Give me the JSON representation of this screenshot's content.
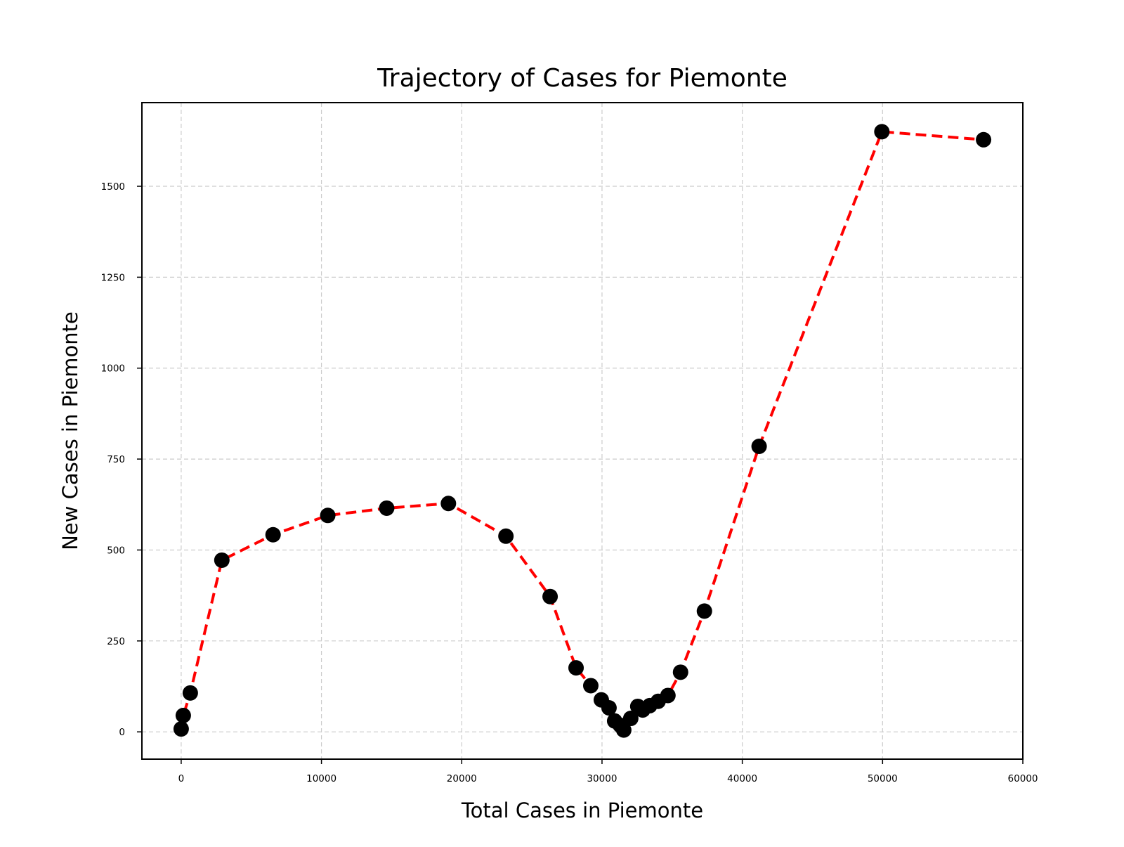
{
  "chart_data": {
    "type": "line",
    "title": "Trajectory of Cases for Piemonte",
    "xlabel": "Total Cases in Piemonte",
    "ylabel": "New Cases in Piemonte",
    "xlim": [
      -2800,
      60000
    ],
    "ylim": [
      -75,
      1730
    ],
    "x_ticks": [
      0,
      10000,
      20000,
      30000,
      40000,
      50000,
      60000
    ],
    "y_ticks": [
      0,
      250,
      500,
      750,
      1000,
      1250,
      1500
    ],
    "grid": true,
    "colors": {
      "line": "#ff0000",
      "marker": "#000000",
      "grid": "#cccccc"
    },
    "series": [
      {
        "line_style": "dashed",
        "marker": "circle",
        "x": [
          0,
          150,
          650,
          2900,
          6550,
          10450,
          14650,
          19050,
          23150,
          26300,
          28150,
          29200,
          29950,
          30500,
          30900,
          31300,
          31550,
          32050,
          32550,
          32900,
          33400,
          34000,
          34700,
          35600,
          37300,
          41200,
          49950,
          57200
        ],
        "y": [
          8,
          45,
          107,
          472,
          542,
          595,
          615,
          628,
          538,
          372,
          176,
          127,
          88,
          66,
          30,
          18,
          5,
          37,
          70,
          60,
          72,
          84,
          100,
          164,
          332,
          785,
          1650,
          1628
        ]
      }
    ]
  }
}
